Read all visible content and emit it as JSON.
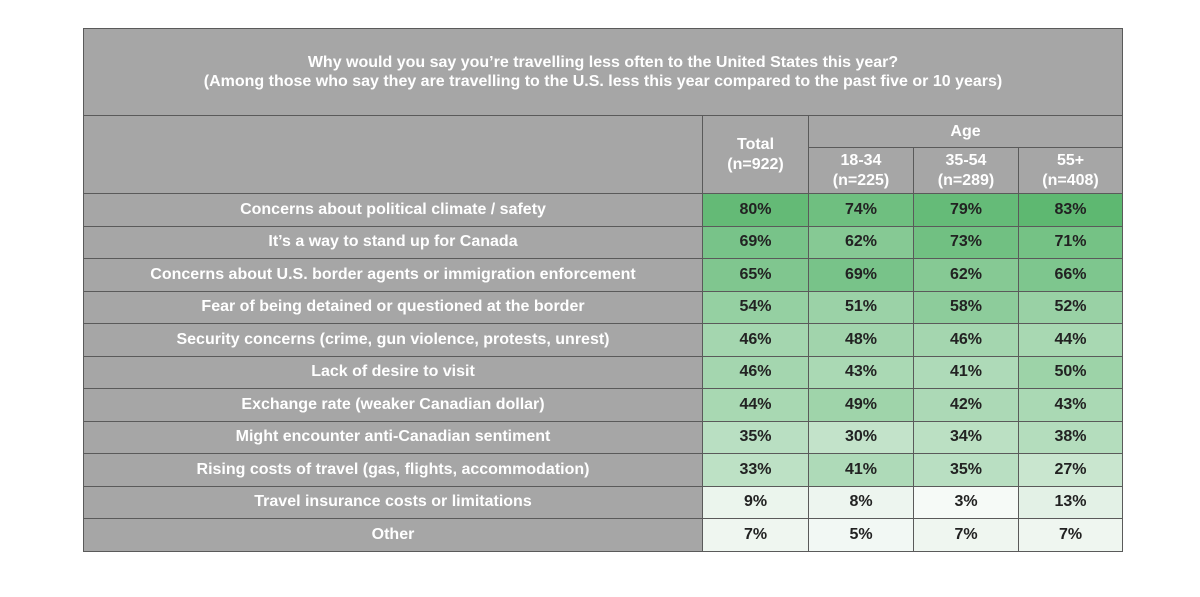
{
  "title": [
    "Why would you say you’re travelling less often to the United States this year?",
    "(Among those who say they are travelling to the U.S. less this year compared to the past five or 10 years)"
  ],
  "header": {
    "total": "Total",
    "total_n": "(n=922)",
    "age": "Age",
    "groups": [
      {
        "label": "18-34",
        "n": "(n=225)"
      },
      {
        "label": "35-54",
        "n": "(n=289)"
      },
      {
        "label": "55+",
        "n": "(n=408)"
      }
    ]
  },
  "rows": [
    {
      "label": "Concerns about political climate / safety",
      "values": [
        "80%",
        "74%",
        "79%",
        "83%"
      ]
    },
    {
      "label": "It’s a way to stand up for Canada",
      "values": [
        "69%",
        "62%",
        "73%",
        "71%"
      ]
    },
    {
      "label": "Concerns about U.S. border agents or immigration enforcement",
      "values": [
        "65%",
        "69%",
        "62%",
        "66%"
      ]
    },
    {
      "label": "Fear of being detained or questioned at the border",
      "values": [
        "54%",
        "51%",
        "58%",
        "52%"
      ]
    },
    {
      "label": "Security concerns (crime, gun violence, protests, unrest)",
      "values": [
        "46%",
        "48%",
        "46%",
        "44%"
      ]
    },
    {
      "label": "Lack of desire to visit",
      "values": [
        "46%",
        "43%",
        "41%",
        "50%"
      ]
    },
    {
      "label": "Exchange rate (weaker Canadian dollar)",
      "values": [
        "44%",
        "49%",
        "42%",
        "43%"
      ]
    },
    {
      "label": "Might encounter anti-Canadian sentiment",
      "values": [
        "35%",
        "30%",
        "34%",
        "38%"
      ]
    },
    {
      "label": "Rising costs of travel (gas, flights, accommodation)",
      "values": [
        "33%",
        "41%",
        "35%",
        "27%"
      ]
    },
    {
      "label": "Travel insurance costs or limitations",
      "values": [
        "9%",
        "8%",
        "3%",
        "13%"
      ]
    },
    {
      "label": "Other",
      "values": [
        "7%",
        "5%",
        "7%",
        "7%"
      ]
    }
  ]
}
